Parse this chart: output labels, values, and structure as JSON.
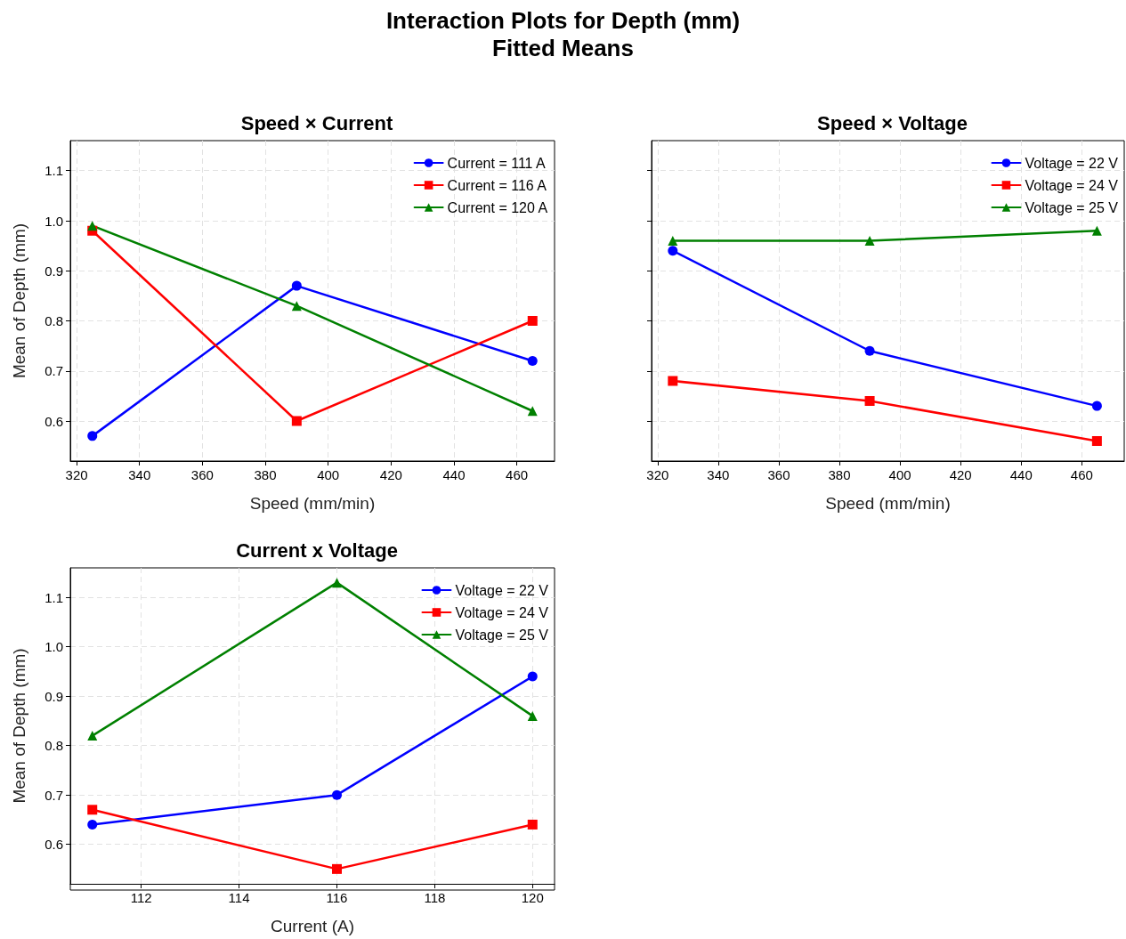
{
  "chart_data": [
    {
      "type": "line",
      "title": "Speed × Current",
      "annotations": [
        "Interaction Plots for Depth (mm)",
        "Fitted Means"
      ],
      "xlabel": "Speed (mm/min)",
      "ylabel": "Mean of Depth (mm)",
      "x": [
        325,
        390,
        465
      ],
      "xlim": [
        318,
        472
      ],
      "xticks": [
        320,
        340,
        360,
        380,
        400,
        420,
        440,
        460
      ],
      "ylim": [
        0.52,
        1.16
      ],
      "yticks": [
        0.6,
        0.7,
        0.8,
        0.9,
        {
          "value": 1.0,
          "label": "1.0"
        },
        1.1
      ],
      "grid": true,
      "legend": "top right",
      "line_style": "solid",
      "series": [
        {
          "name": "Current = 111 A",
          "color": "#0000ff",
          "marker": "circle",
          "values": [
            0.57,
            0.87,
            0.72
          ]
        },
        {
          "name": "Current = 116 A",
          "color": "#ff0000",
          "marker": "square",
          "values": [
            0.98,
            0.6,
            0.8
          ]
        },
        {
          "name": "Current = 120 A",
          "color": "#008000",
          "marker": "triangle",
          "values": [
            0.99,
            0.83,
            0.62
          ]
        }
      ]
    },
    {
      "type": "line",
      "title": "Speed × Voltage",
      "xlabel": "Speed (mm/min)",
      "x": [
        325,
        390,
        465
      ],
      "xlim": [
        318,
        474
      ],
      "xticks": [
        320,
        340,
        360,
        380,
        400,
        420,
        440,
        460
      ],
      "ylim": [
        0.52,
        1.16
      ],
      "yticks": [
        0.6,
        0.7,
        0.8,
        0.9,
        1.0,
        1.1
      ],
      "tick_labels": "x",
      "grid": true,
      "legend": "top right",
      "line_style": "solid",
      "series": [
        {
          "name": "Voltage = 22 V",
          "color": "#0000ff",
          "marker": "circle",
          "values": [
            0.94,
            0.74,
            0.63
          ]
        },
        {
          "name": "Voltage = 24 V",
          "color": "#ff0000",
          "marker": "square",
          "values": [
            0.68,
            0.64,
            0.56
          ]
        },
        {
          "name": "Voltage = 25 V",
          "color": "#008000",
          "marker": "triangle",
          "values": [
            0.96,
            0.96,
            0.98
          ]
        }
      ]
    },
    {
      "type": "line",
      "title": "Current x Voltage",
      "xlabel": "Current (A)",
      "ylabel": "Mean of Depth (mm)",
      "x": [
        111,
        116,
        120
      ],
      "xlim": [
        110.55,
        120.45
      ],
      "xticks": [
        112,
        114,
        116,
        118,
        120
      ],
      "ylim": [
        0.52,
        1.16
      ],
      "yticks": [
        0.6,
        0.7,
        0.8,
        0.9,
        {
          "value": 1.0,
          "label": "1.0"
        },
        1.1
      ],
      "grid": true,
      "legend": "top right",
      "line_style": "solid",
      "series": [
        {
          "name": "Voltage = 22 V",
          "color": "#0000ff",
          "marker": "circle",
          "values": [
            0.64,
            0.7,
            0.94
          ]
        },
        {
          "name": "Voltage = 24 V",
          "color": "#ff0000",
          "marker": "square",
          "values": [
            0.67,
            0.55,
            0.64
          ]
        },
        {
          "name": "Voltage = 25 V",
          "color": "#008000",
          "marker": "triangle",
          "values": [
            0.82,
            1.13,
            0.86
          ]
        }
      ]
    }
  ]
}
